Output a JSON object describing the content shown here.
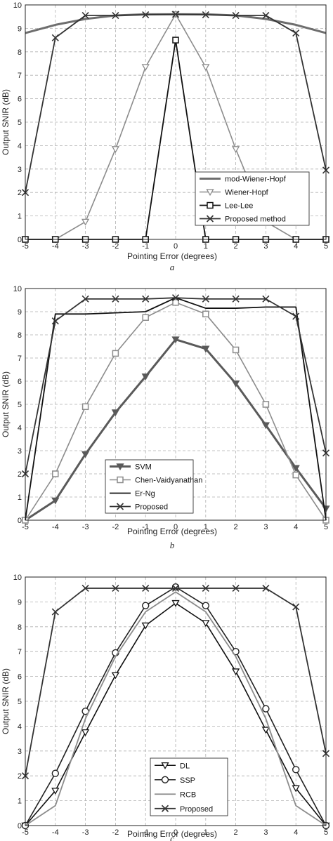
{
  "chart_data": [
    {
      "type": "line",
      "panel_label": "a",
      "xlabel": "Pointing Error (degrees)",
      "ylabel": "Output SNIR (dB)",
      "x": [
        -5,
        -4,
        -3,
        -2,
        -1,
        0,
        1,
        2,
        3,
        4,
        5
      ],
      "xlim": [
        -5,
        5
      ],
      "ylim": [
        0,
        10
      ],
      "xticks": [
        "-5",
        "-4",
        "-3",
        "-2",
        "-1",
        "0",
        "1",
        "2",
        "3",
        "4",
        "5"
      ],
      "yticks": [
        "0",
        "1",
        "2",
        "3",
        "4",
        "5",
        "6",
        "7",
        "8",
        "9",
        "10"
      ],
      "grid": true,
      "legend_position": "bottom-right",
      "series": [
        {
          "name": "mod-Wiener-Hopf",
          "color": "#6e6e6e",
          "marker": "none",
          "width": 3,
          "values": [
            8.8,
            9.15,
            9.4,
            9.55,
            9.6,
            9.6,
            9.6,
            9.55,
            9.4,
            9.15,
            8.8
          ]
        },
        {
          "name": "Wiener-Hopf",
          "color": "#8c8c8c",
          "marker": "triangle",
          "width": 1.6,
          "values": [
            0,
            0,
            0.75,
            3.85,
            7.35,
            9.6,
            7.35,
            3.85,
            0.75,
            0,
            0
          ]
        },
        {
          "name": "Lee-Lee",
          "color": "#111111",
          "marker": "square",
          "width": 1.8,
          "values": [
            0,
            0,
            0,
            0,
            0,
            8.5,
            0,
            0,
            0,
            0,
            0
          ]
        },
        {
          "name": "Proposed method",
          "color": "#333333",
          "marker": "x",
          "width": 1.8,
          "values": [
            2.0,
            8.6,
            9.55,
            9.55,
            9.58,
            9.6,
            9.58,
            9.55,
            9.55,
            8.8,
            2.95
          ]
        }
      ]
    },
    {
      "type": "line",
      "panel_label": "b",
      "xlabel": "Pointing Error (degrees)",
      "ylabel": "Output SNIR (dB)",
      "x": [
        -5,
        -4,
        -3,
        -2,
        -1,
        0,
        1,
        2,
        3,
        4,
        5
      ],
      "xlim": [
        -5,
        5
      ],
      "ylim": [
        0,
        10
      ],
      "xticks": [
        "-5",
        "-4",
        "-3",
        "-2",
        "-1",
        "0",
        "1",
        "2",
        "3",
        "4",
        "5"
      ],
      "yticks": [
        "0",
        "1",
        "2",
        "3",
        "4",
        "5",
        "6",
        "7",
        "8",
        "9",
        "10"
      ],
      "grid": true,
      "legend_position": "bottom-left",
      "series": [
        {
          "name": "SVM",
          "color": "#5a5a5a",
          "marker": "triangle-filled",
          "width": 3,
          "values": [
            0,
            0.85,
            2.85,
            4.65,
            6.2,
            7.8,
            7.4,
            5.9,
            4.1,
            2.25,
            0.5
          ]
        },
        {
          "name": "Chen-Vaidyanathan",
          "color": "#8c8c8c",
          "marker": "square",
          "width": 1.6,
          "values": [
            0,
            2.0,
            4.9,
            7.2,
            8.75,
            9.4,
            8.9,
            7.35,
            5.0,
            1.95,
            0
          ]
        },
        {
          "name": "Er-Ng",
          "color": "#111111",
          "marker": "none",
          "width": 1.8,
          "values": [
            0,
            8.9,
            8.9,
            8.95,
            9.0,
            9.6,
            9.15,
            9.15,
            9.2,
            9.2,
            0
          ]
        },
        {
          "name": "Proposed",
          "color": "#333333",
          "marker": "x",
          "width": 1.8,
          "values": [
            2.0,
            8.6,
            9.55,
            9.55,
            9.55,
            9.6,
            9.55,
            9.55,
            9.55,
            8.8,
            2.9
          ]
        }
      ]
    },
    {
      "type": "line",
      "panel_label": "c",
      "xlabel": "Pointing Error (degrees)",
      "ylabel": "Output SNIR (dB)",
      "x": [
        -5,
        -4,
        -3,
        -2,
        -1,
        0,
        1,
        2,
        3,
        4,
        5
      ],
      "xlim": [
        -5,
        5
      ],
      "ylim": [
        0,
        10
      ],
      "xticks": [
        "-5",
        "-4",
        "-3",
        "-2",
        "-1",
        "0",
        "1",
        "2",
        "3",
        "4",
        "5"
      ],
      "yticks": [
        "0",
        "1",
        "2",
        "3",
        "4",
        "5",
        "6",
        "7",
        "8",
        "9",
        "10"
      ],
      "grid": true,
      "legend_position": "bottom-center",
      "series": [
        {
          "name": "DL",
          "color": "#111111",
          "marker": "triangle",
          "width": 1.6,
          "values": [
            0,
            1.4,
            3.75,
            6.05,
            8.05,
            8.95,
            8.15,
            6.2,
            3.85,
            1.5,
            0
          ]
        },
        {
          "name": "SSP",
          "color": "#222222",
          "marker": "circle",
          "width": 1.6,
          "values": [
            0,
            2.1,
            4.6,
            6.95,
            8.85,
            9.6,
            8.85,
            7.0,
            4.7,
            2.25,
            0
          ]
        },
        {
          "name": "RCB",
          "color": "#8c8c8c",
          "marker": "none",
          "width": 1.8,
          "values": [
            0,
            0.8,
            4.3,
            6.8,
            8.6,
            9.4,
            8.6,
            6.8,
            4.3,
            0.8,
            0
          ]
        },
        {
          "name": "Proposed",
          "color": "#333333",
          "marker": "x",
          "width": 1.8,
          "values": [
            2.0,
            8.6,
            9.55,
            9.55,
            9.55,
            9.55,
            9.55,
            9.55,
            9.55,
            8.8,
            2.9
          ]
        }
      ]
    }
  ]
}
